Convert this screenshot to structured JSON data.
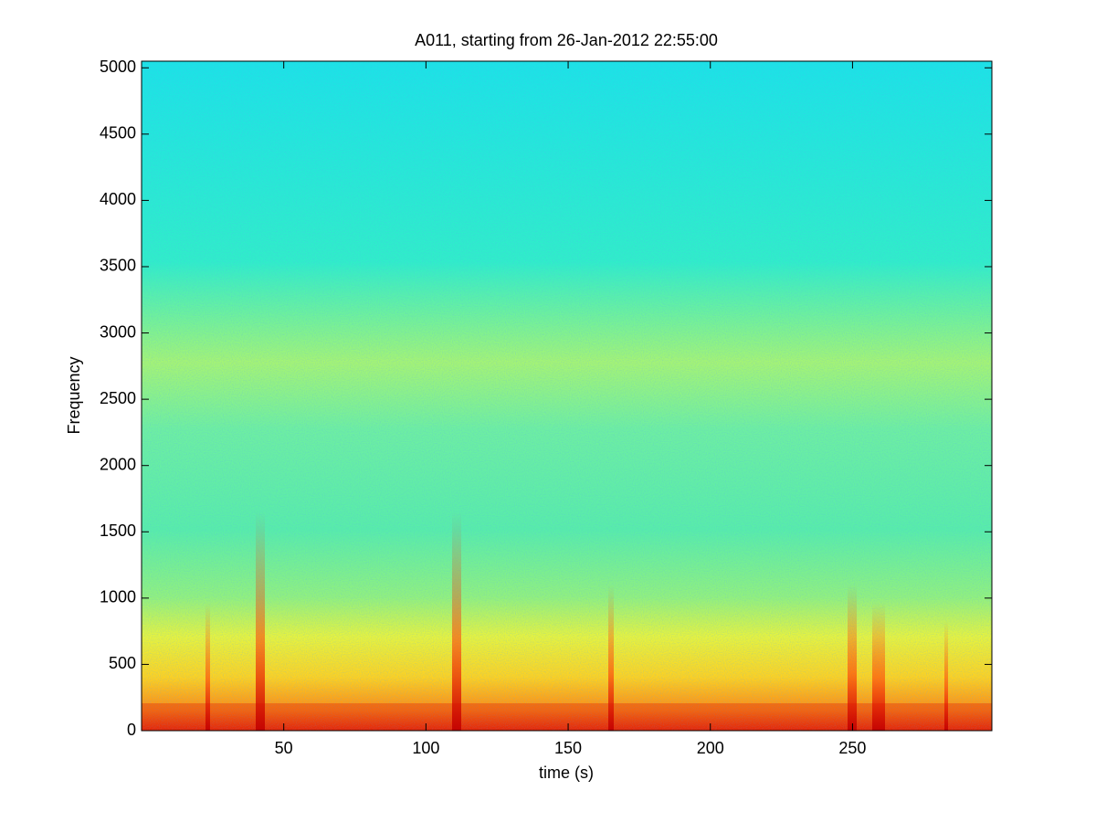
{
  "chart_data": {
    "type": "spectrogram",
    "title": "A011, starting from 26-Jan-2012 22:55:00",
    "x_label": "time (s)",
    "y_label": "Frequency",
    "xlim": [
      0,
      299
    ],
    "ylim": [
      0,
      5050
    ],
    "xticks": [
      50,
      100,
      150,
      200,
      250
    ],
    "yticks": [
      0,
      500,
      1000,
      1500,
      2000,
      2500,
      3000,
      3500,
      4000,
      4500,
      5000
    ],
    "colormap": "jet"
  }
}
